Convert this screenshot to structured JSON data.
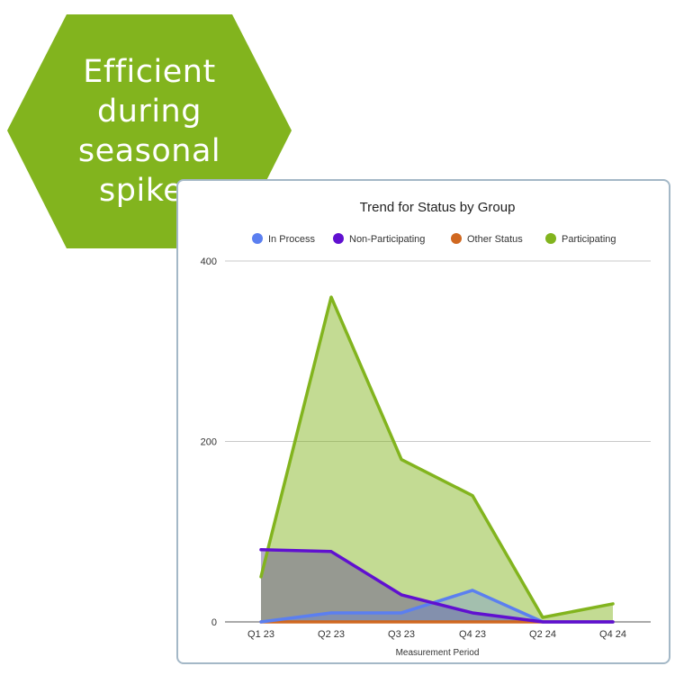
{
  "badge": {
    "lines": [
      "Efficient",
      "during",
      "seasonal",
      "spikes"
    ],
    "color": "#82b41e"
  },
  "chart_data": {
    "type": "area",
    "title": "Trend for Status by Group",
    "xlabel": "Measurement Period",
    "ylabel": "",
    "categories": [
      "Q1 23",
      "Q2 23",
      "Q3 23",
      "Q4 23",
      "Q2 24",
      "Q4 24"
    ],
    "ylim": [
      0,
      400
    ],
    "yticks": [
      0,
      200,
      400
    ],
    "grid": true,
    "legend_position": "top",
    "series": [
      {
        "name": "In Process",
        "color": "#5b7ff0",
        "values": [
          0,
          10,
          10,
          35,
          0,
          0
        ]
      },
      {
        "name": "Non-Participating",
        "color": "#6010d0",
        "values": [
          80,
          78,
          30,
          10,
          0,
          0
        ]
      },
      {
        "name": "Other Status",
        "color": "#d06820",
        "values": [
          0,
          0,
          0,
          0,
          0,
          0
        ]
      },
      {
        "name": "Participating",
        "color": "#82b41e",
        "values": [
          50,
          360,
          180,
          140,
          5,
          20
        ]
      }
    ]
  }
}
